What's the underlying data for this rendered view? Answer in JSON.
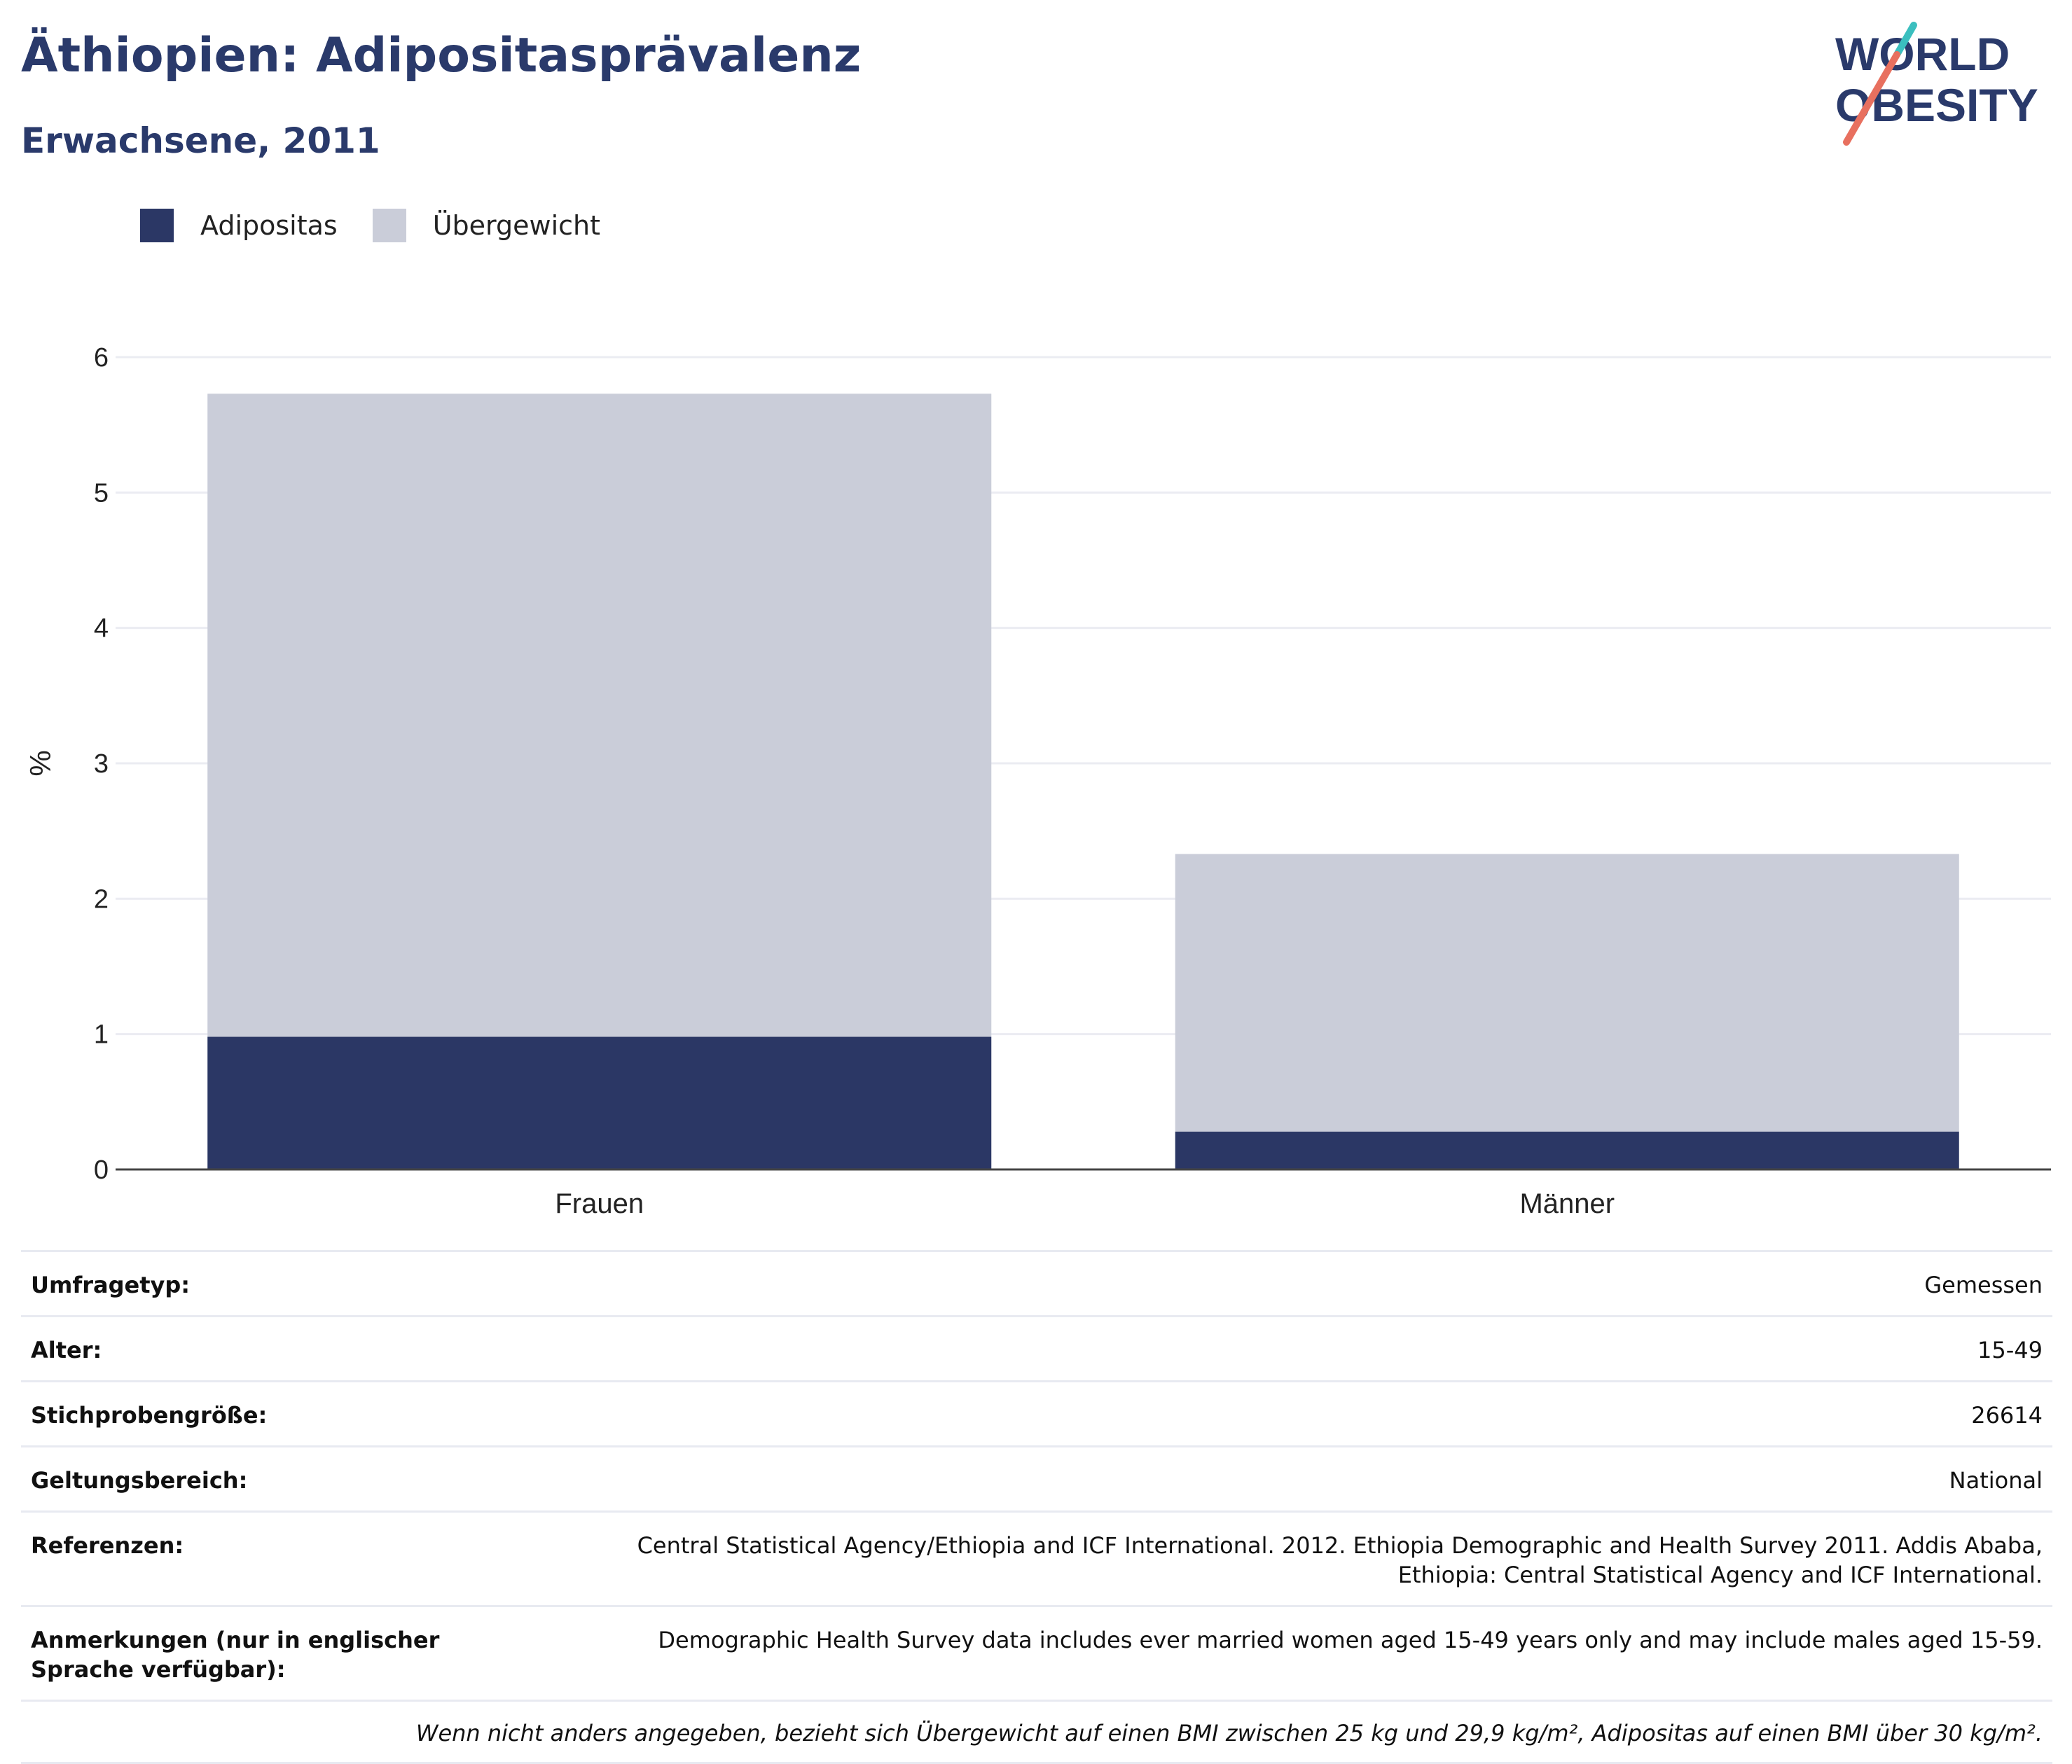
{
  "header": {
    "title": "Äthiopien: Adipositasprävalenz",
    "subtitle": "Erwachsene, 2011"
  },
  "logo": {
    "line1": "WORLD",
    "line2": "OBESITY"
  },
  "colors": {
    "obesity": "#2b3765",
    "overweight": "#cacdd9",
    "title": "#2a3a6b",
    "grid": "#ebecf2"
  },
  "legend": {
    "items": [
      {
        "label": "Adipositas",
        "color": "#2b3765"
      },
      {
        "label": "Übergewicht",
        "color": "#cacdd9"
      }
    ]
  },
  "chart_data": {
    "type": "bar",
    "stacked": true,
    "categories": [
      "Frauen",
      "Männer"
    ],
    "series": [
      {
        "name": "Adipositas",
        "values": [
          0.98,
          0.28
        ]
      },
      {
        "name": "Übergewicht",
        "values": [
          4.75,
          2.05
        ]
      }
    ],
    "ylabel": "%",
    "ylim": [
      0,
      6
    ],
    "yticks": [
      0,
      1,
      2,
      3,
      4,
      5,
      6
    ],
    "grid": true,
    "legend_position": "top-left"
  },
  "info": {
    "rows": [
      {
        "key": "Umfragetyp:",
        "value": "Gemessen"
      },
      {
        "key": "Alter:",
        "value": "15-49"
      },
      {
        "key": "Stichprobengröße:",
        "value": "26614"
      },
      {
        "key": "Geltungsbereich:",
        "value": "National"
      },
      {
        "key": "Referenzen:",
        "value": "Central Statistical Agency/Ethiopia and ICF International. 2012. Ethiopia Demographic and Health Survey 2011. Addis Ababa, Ethiopia: Central Statistical Agency and ICF International."
      },
      {
        "key": "Anmerkungen (nur in englischer Sprache verfügbar):",
        "value": "Demographic Health Survey data includes ever married women aged 15-49 years only and may include males aged 15-59."
      }
    ],
    "footnote": "Wenn nicht anders angegeben, bezieht sich Übergewicht auf einen BMI zwischen 25 kg und 29,9 kg/m², Adipositas auf einen BMI über 30 kg/m²."
  }
}
